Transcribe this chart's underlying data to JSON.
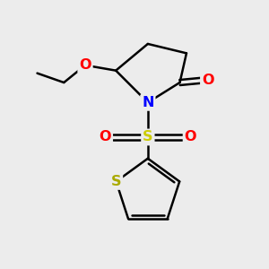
{
  "background_color": "#ececec",
  "bond_color": "#000000",
  "N_color": "#0000ff",
  "O_color": "#ff0000",
  "S_sulfonyl_color": "#cccc00",
  "S_thiophene_color": "#aaaa00",
  "figsize": [
    3.0,
    3.0
  ],
  "dpi": 100,
  "xlim": [
    0,
    10
  ],
  "ylim": [
    0,
    10
  ]
}
